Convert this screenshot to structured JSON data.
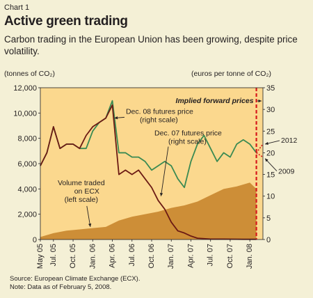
{
  "header": {
    "chart_number": "Chart 1",
    "title": "Active green trading",
    "subtitle": "Carbon trading in the European Union has been growing, despite price volatility."
  },
  "axes": {
    "left_unit": "(tonnes of CO₂)",
    "right_unit": "(euros per tonne of CO₂)"
  },
  "footer": {
    "source": "Source: European Climate Exchange (ECX).",
    "note": "Note: Data as of February 5, 2008."
  },
  "colors": {
    "plot_bg": "#fbd88e",
    "volume": "#c8862e",
    "dec07": "#6b1a14",
    "dec08": "#3a8a52",
    "forward": "#d7191c",
    "page_bg": "#f4f0d6"
  },
  "chart_data": {
    "type": "area",
    "x_tick_labels": [
      "May 05",
      "Jul. 05",
      "Oct. 05",
      "Jan. 06",
      "Apr. 06",
      "Jul. 06",
      "Oct. 06",
      "Jan. 07",
      "Apr. 07",
      "Jul. 07",
      "Oct. 07",
      "Jan. 08"
    ],
    "x_tick_dates": [
      "2005-05",
      "2005-07",
      "2005-10",
      "2006-01",
      "2006-04",
      "2006-07",
      "2006-10",
      "2007-01",
      "2007-04",
      "2007-07",
      "2007-10",
      "2008-01"
    ],
    "ylim_left": [
      0,
      12000
    ],
    "left_ticks": [
      0,
      2000,
      4000,
      6000,
      8000,
      10000,
      12000
    ],
    "left_tick_labels": [
      "0",
      "2,000",
      "4,000",
      "6,000",
      "8,000",
      "10,000",
      "12,000"
    ],
    "ylim_right": [
      0,
      35
    ],
    "right_ticks": [
      0,
      5,
      10,
      15,
      20,
      25,
      30,
      35
    ],
    "grid": false,
    "series": [
      {
        "name": "Volume traded on ECX (left scale)",
        "axis": "left",
        "kind": "area",
        "x": [
          "2005-05",
          "2005-07",
          "2005-09",
          "2005-11",
          "2006-01",
          "2006-03",
          "2006-05",
          "2006-07",
          "2006-09",
          "2006-11",
          "2007-01",
          "2007-03",
          "2007-05",
          "2007-07",
          "2007-09",
          "2007-11",
          "2008-01",
          "2008-02"
        ],
        "y": [
          200,
          500,
          700,
          800,
          900,
          1000,
          1500,
          1800,
          2000,
          2200,
          2500,
          2700,
          3000,
          3500,
          4000,
          4200,
          4500,
          4000
        ]
      },
      {
        "name": "Dec. 08 futures price (right scale)",
        "axis": "right",
        "kind": "line",
        "x": [
          "2005-05",
          "2005-06",
          "2005-07",
          "2005-08",
          "2005-09",
          "2005-10",
          "2005-11",
          "2005-12",
          "2006-01",
          "2006-02",
          "2006-03",
          "2006-04",
          "2006-05",
          "2006-06",
          "2006-07",
          "2006-08",
          "2006-09",
          "2006-10",
          "2006-11",
          "2006-12",
          "2007-01",
          "2007-02",
          "2007-03",
          "2007-04",
          "2007-05",
          "2007-06",
          "2007-07",
          "2007-08",
          "2007-09",
          "2007-10",
          "2007-11",
          "2007-12",
          "2008-01",
          "2008-02"
        ],
        "y": [
          17,
          20,
          26,
          21,
          22,
          22,
          21,
          21,
          25,
          27,
          28,
          32,
          20,
          20,
          19,
          19,
          18,
          16,
          17,
          18,
          17,
          14,
          12,
          18,
          22,
          24,
          21,
          18,
          20,
          19,
          22,
          23,
          22,
          20
        ]
      },
      {
        "name": "Dec. 07 futures price (right scale)",
        "axis": "right",
        "kind": "line",
        "x": [
          "2005-05",
          "2005-06",
          "2005-07",
          "2005-08",
          "2005-09",
          "2005-10",
          "2005-11",
          "2005-12",
          "2006-01",
          "2006-02",
          "2006-03",
          "2006-04",
          "2006-05",
          "2006-06",
          "2006-07",
          "2006-08",
          "2006-09",
          "2006-10",
          "2006-11",
          "2006-12",
          "2007-01",
          "2007-02",
          "2007-03",
          "2007-04",
          "2007-05",
          "2007-06",
          "2007-07",
          "2007-09",
          "2007-12",
          "2008-02"
        ],
        "y": [
          17,
          20,
          26,
          21,
          22,
          22,
          21,
          24,
          26,
          27,
          28,
          31,
          15,
          16,
          15,
          16,
          14,
          12,
          9,
          7,
          4,
          2,
          1.5,
          0.8,
          0.3,
          0.2,
          0.1,
          0.1,
          0.05,
          0.05
        ]
      }
    ],
    "annotations": {
      "implied_forward_prices": "Implied forward prices",
      "forward_2012": {
        "label": "2012",
        "value": 22
      },
      "forward_2009": {
        "label": "2009",
        "value": 19
      },
      "dec08_label": [
        "Dec. 08 futures price",
        "(right scale)"
      ],
      "dec07_label": [
        "Dec. 07 futures price",
        "(right scale)"
      ],
      "volume_label": [
        "Volume traded",
        "on ECX",
        "(left scale)"
      ]
    }
  }
}
